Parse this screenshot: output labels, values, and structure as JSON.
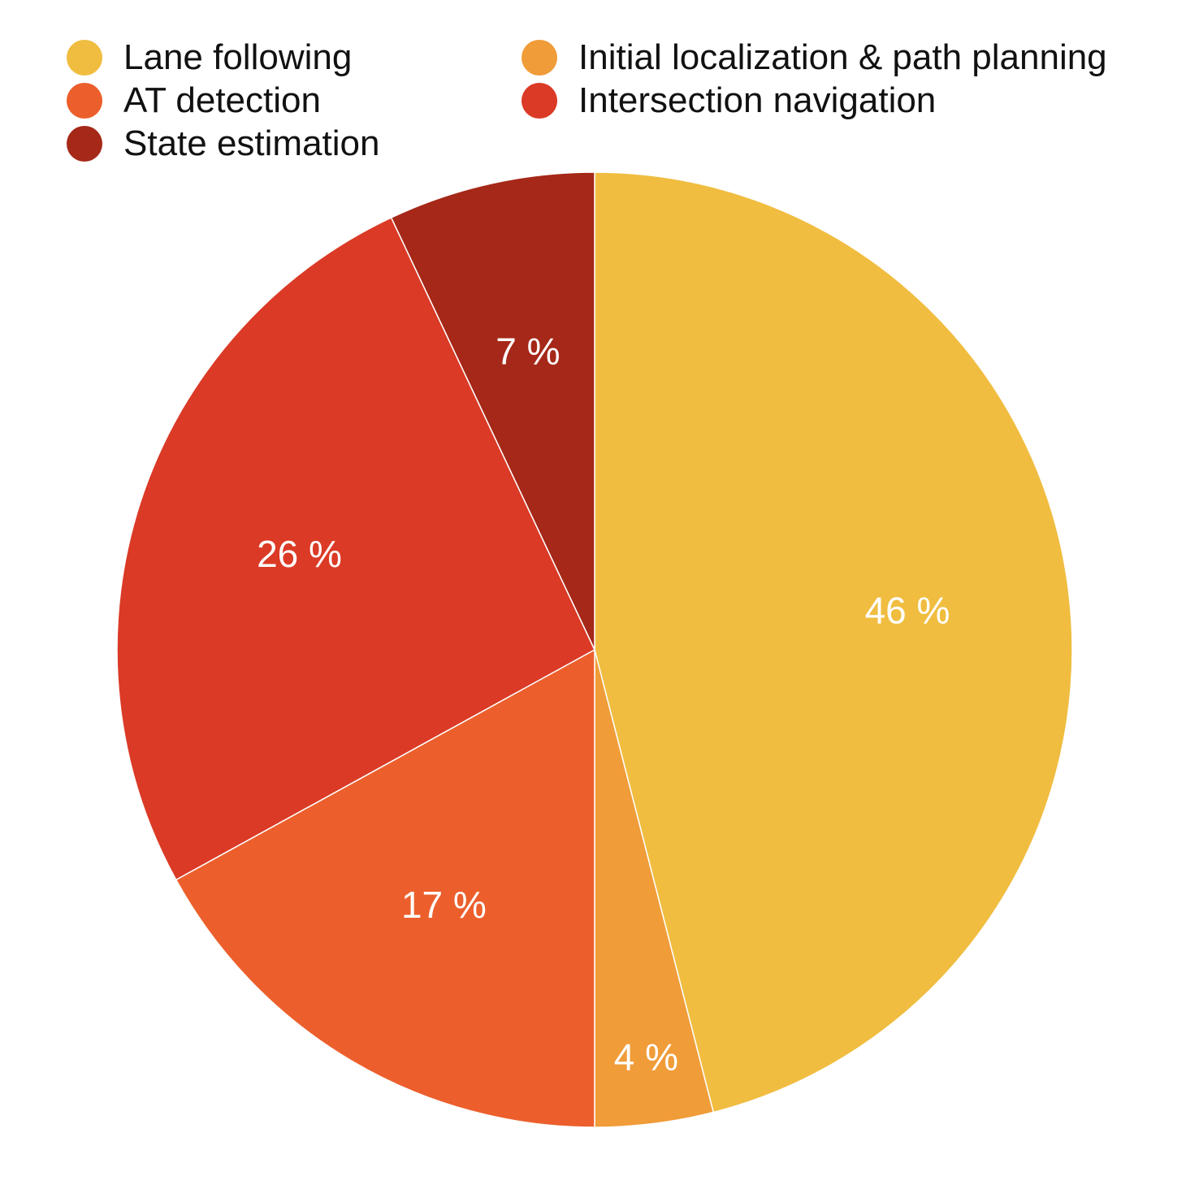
{
  "chart_data": {
    "type": "pie",
    "legend_position": "top",
    "slices": [
      {
        "name": "Lane following",
        "value": 46,
        "label": "46 %",
        "color": "#F0BD40"
      },
      {
        "name": "Initial localization & path planning",
        "value": 4,
        "label": "4 %",
        "color": "#F09C38"
      },
      {
        "name": "AT detection",
        "value": 17,
        "label": "17 %",
        "color": "#EC5F2C"
      },
      {
        "name": "Intersection navigation",
        "value": 26,
        "label": "26 %",
        "color": "#DB3A26"
      },
      {
        "name": "State estimation",
        "value": 7,
        "label": "7 %",
        "color": "#A52818"
      }
    ],
    "legend_order": [
      0,
      2,
      4,
      1,
      3
    ]
  }
}
